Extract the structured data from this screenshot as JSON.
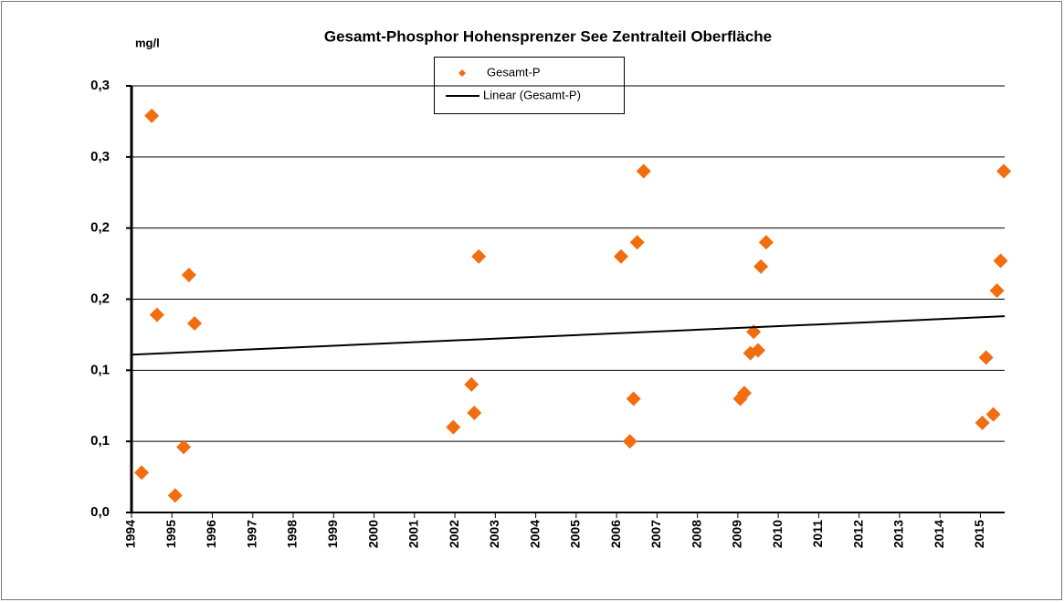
{
  "chart_data": {
    "type": "scatter",
    "title": "Gesamt-Phosphor  Hohensprenzer See Zentralteil Oberfläche",
    "y_label": "mg/l",
    "xlim": [
      1994,
      2015.6
    ],
    "xticks": [
      1994,
      1995,
      1996,
      1997,
      1998,
      1999,
      2000,
      2001,
      2002,
      2003,
      2004,
      2005,
      2006,
      2007,
      2008,
      2009,
      2010,
      2011,
      2012,
      2013,
      2014,
      2015
    ],
    "ylim": [
      0,
      0.3
    ],
    "yticks": [
      {
        "value": 0,
        "label": "0,0"
      },
      {
        "value": 0.05,
        "label": "0,1"
      },
      {
        "value": 0.1,
        "label": "0,1"
      },
      {
        "value": 0.15,
        "label": "0,2"
      },
      {
        "value": 0.2,
        "label": "0,2"
      },
      {
        "value": 0.25,
        "label": "0,3"
      },
      {
        "value": 0.3,
        "label": "0,3"
      }
    ],
    "grid": true,
    "legend": "top",
    "series": [
      {
        "name": "Gesamt-P",
        "color": "#f26d0f",
        "x": [
          1994.25,
          1994.5,
          1994.63,
          1995.08,
          1995.29,
          1995.42,
          1995.56,
          2001.96,
          2002.41,
          2002.48,
          2002.59,
          2006.11,
          2006.33,
          2006.42,
          2006.51,
          2006.67,
          2009.06,
          2009.16,
          2009.31,
          2009.39,
          2009.5,
          2009.57,
          2009.7,
          2015.05,
          2015.14,
          2015.32,
          2015.41,
          2015.5,
          2015.58
        ],
        "values": [
          0.028,
          0.279,
          0.139,
          0.012,
          0.046,
          0.167,
          0.133,
          0.06,
          0.09,
          0.07,
          0.18,
          0.18,
          0.05,
          0.08,
          0.19,
          0.24,
          0.08,
          0.084,
          0.112,
          0.127,
          0.114,
          0.173,
          0.19,
          0.063,
          0.109,
          0.069,
          0.156,
          0.177,
          0.24
        ]
      },
      {
        "name": "Linear (Gesamt-P)",
        "color": "#000000",
        "line": true,
        "x": [
          1994,
          2015.6
        ],
        "values": [
          0.111,
          0.138
        ]
      }
    ]
  }
}
